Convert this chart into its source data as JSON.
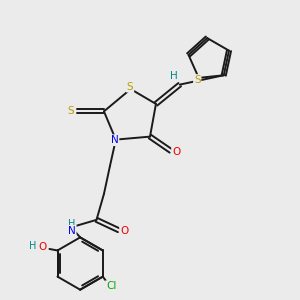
{
  "background_color": "#ebebeb",
  "bond_color": "#1a1a1a",
  "atom_colors": {
    "S": "#b8a000",
    "N": "#0000ee",
    "O": "#ee0000",
    "Cl": "#00aa00",
    "H": "#008888"
  },
  "figure_size": [
    3.0,
    3.0
  ],
  "dpi": 100,
  "lw": 1.4
}
